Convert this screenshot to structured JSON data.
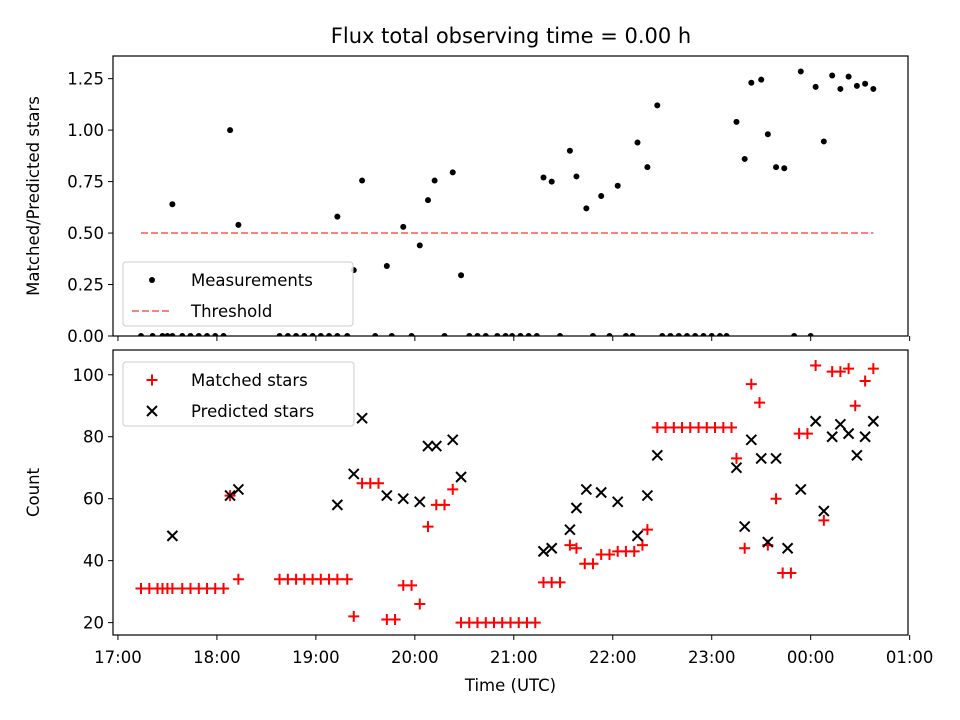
{
  "figure": {
    "title": "Flux total observing time = 0.00 h"
  },
  "chart_data": [
    {
      "type": "scatter",
      "title": "Flux total observing time = 0.00 h",
      "xlabel": "",
      "ylabel": "Matched/Predicted stars",
      "xlim": [
        -0.05,
        7.9833
      ],
      "ylim": [
        0,
        1.36
      ],
      "xtick_values": [
        0,
        1,
        2,
        3,
        4,
        5,
        6,
        7,
        8
      ],
      "xtick_labels": [
        "17:00",
        "18:00",
        "19:00",
        "20:00",
        "21:00",
        "22:00",
        "23:00",
        "00:00",
        "01:00"
      ],
      "ytick_values": [
        0,
        0.25,
        0.5,
        0.75,
        1.0,
        1.25
      ],
      "ytick_labels": [
        "0.00",
        "0.25",
        "0.50",
        "0.75",
        "1.00",
        "1.25"
      ],
      "grid": false,
      "legend": "lower-left",
      "series": [
        {
          "name": "Measurements",
          "color": "#000000",
          "marker": "dot",
          "points": [
            [
              0.233,
              0
            ],
            [
              0.35,
              0
            ],
            [
              0.45,
              0
            ],
            [
              0.5,
              0
            ],
            [
              0.55,
              0
            ],
            [
              0.65,
              0
            ],
            [
              0.733,
              0
            ],
            [
              0.817,
              0
            ],
            [
              0.9,
              0
            ],
            [
              0.983,
              0
            ],
            [
              1.067,
              0
            ],
            [
              0.55,
              0.64
            ],
            [
              1.133,
              1.0
            ],
            [
              1.217,
              0.54
            ],
            [
              1.633,
              0
            ],
            [
              1.717,
              0
            ],
            [
              1.8,
              0
            ],
            [
              1.883,
              0
            ],
            [
              1.967,
              0
            ],
            [
              2.05,
              0
            ],
            [
              2.133,
              0
            ],
            [
              2.217,
              0
            ],
            [
              2.317,
              0
            ],
            [
              2.217,
              0.58
            ],
            [
              2.383,
              0.32
            ],
            [
              2.467,
              0.755
            ],
            [
              2.6,
              0
            ],
            [
              2.767,
              0
            ],
            [
              2.967,
              0
            ],
            [
              2.717,
              0.34
            ],
            [
              2.883,
              0.53
            ],
            [
              3.05,
              0.44
            ],
            [
              3.133,
              0.66
            ],
            [
              3.2,
              0.755
            ],
            [
              3.383,
              0.795
            ],
            [
              3.467,
              0.295
            ],
            [
              3.3,
              0
            ],
            [
              3.55,
              0
            ],
            [
              3.633,
              0
            ],
            [
              3.717,
              0
            ],
            [
              3.833,
              0
            ],
            [
              3.917,
              0
            ],
            [
              3.983,
              0
            ],
            [
              4.067,
              0
            ],
            [
              4.15,
              0
            ],
            [
              4.233,
              0
            ],
            [
              4.467,
              0
            ],
            [
              4.3,
              0.77
            ],
            [
              4.383,
              0.75
            ],
            [
              4.567,
              0.9
            ],
            [
              4.633,
              0.775
            ],
            [
              4.733,
              0.62
            ],
            [
              4.883,
              0.68
            ],
            [
              5.05,
              0.73
            ],
            [
              5.25,
              0.94
            ],
            [
              5.35,
              0.82
            ],
            [
              5.45,
              1.12
            ],
            [
              4.8,
              0
            ],
            [
              4.967,
              0
            ],
            [
              5.133,
              0
            ],
            [
              5.2,
              0
            ],
            [
              5.5,
              0
            ],
            [
              5.583,
              0
            ],
            [
              5.667,
              0
            ],
            [
              5.75,
              0
            ],
            [
              5.833,
              0
            ],
            [
              5.917,
              0
            ],
            [
              6.0,
              0
            ],
            [
              6.083,
              0
            ],
            [
              6.15,
              0
            ],
            [
              6.25,
              1.04
            ],
            [
              6.333,
              0.86
            ],
            [
              6.4,
              1.23
            ],
            [
              6.5,
              1.245
            ],
            [
              6.567,
              0.98
            ],
            [
              6.65,
              0.82
            ],
            [
              6.733,
              0.815
            ],
            [
              6.833,
              0
            ],
            [
              7.0,
              0
            ],
            [
              6.9,
              1.285
            ],
            [
              7.05,
              1.21
            ],
            [
              7.133,
              0.945
            ],
            [
              7.217,
              1.265
            ],
            [
              7.3,
              1.2
            ],
            [
              7.383,
              1.26
            ],
            [
              7.467,
              1.215
            ],
            [
              7.55,
              1.225
            ],
            [
              7.633,
              1.2
            ]
          ]
        },
        {
          "name": "Threshold",
          "color": "#ff7f7f",
          "style": "dashed",
          "points": [
            [
              0.233,
              0.5
            ],
            [
              7.633,
              0.5
            ]
          ]
        }
      ]
    },
    {
      "type": "scatter",
      "title": "",
      "xlabel": "Time (UTC)",
      "ylabel": "Count",
      "xlim": [
        -0.05,
        7.9833
      ],
      "ylim": [
        16,
        108
      ],
      "xtick_values": [
        0,
        1,
        2,
        3,
        4,
        5,
        6,
        7,
        8
      ],
      "xtick_labels": [
        "17:00",
        "18:00",
        "19:00",
        "20:00",
        "21:00",
        "22:00",
        "23:00",
        "00:00",
        "01:00"
      ],
      "ytick_values": [
        20,
        40,
        60,
        80,
        100
      ],
      "ytick_labels": [
        "20",
        "40",
        "60",
        "80",
        "100"
      ],
      "grid": false,
      "legend": "top-left",
      "series": [
        {
          "name": "Matched stars",
          "color": "#ff0000",
          "marker": "plus",
          "points": [
            [
              0.233,
              31
            ],
            [
              0.317,
              31
            ],
            [
              0.4,
              31
            ],
            [
              0.45,
              31
            ],
            [
              0.5,
              31
            ],
            [
              0.55,
              31
            ],
            [
              0.65,
              31
            ],
            [
              0.733,
              31
            ],
            [
              0.817,
              31
            ],
            [
              0.9,
              31
            ],
            [
              0.983,
              31
            ],
            [
              1.067,
              31
            ],
            [
              1.133,
              61
            ],
            [
              1.217,
              34
            ],
            [
              1.633,
              34
            ],
            [
              1.717,
              34
            ],
            [
              1.8,
              34
            ],
            [
              1.883,
              34
            ],
            [
              1.967,
              34
            ],
            [
              2.05,
              34
            ],
            [
              2.133,
              34
            ],
            [
              2.217,
              34
            ],
            [
              2.317,
              34
            ],
            [
              2.383,
              22
            ],
            [
              2.467,
              65
            ],
            [
              2.55,
              65
            ],
            [
              2.633,
              65
            ],
            [
              2.717,
              21
            ],
            [
              2.8,
              21
            ],
            [
              2.883,
              32
            ],
            [
              2.967,
              32
            ],
            [
              3.05,
              26
            ],
            [
              3.133,
              51
            ],
            [
              3.217,
              58
            ],
            [
              3.3,
              58
            ],
            [
              3.383,
              63
            ],
            [
              3.467,
              20
            ],
            [
              3.55,
              20
            ],
            [
              3.633,
              20
            ],
            [
              3.717,
              20
            ],
            [
              3.8,
              20
            ],
            [
              3.883,
              20
            ],
            [
              3.967,
              20
            ],
            [
              4.05,
              20
            ],
            [
              4.133,
              20
            ],
            [
              4.217,
              20
            ],
            [
              4.3,
              33
            ],
            [
              4.383,
              33
            ],
            [
              4.467,
              33
            ],
            [
              4.567,
              45
            ],
            [
              4.633,
              44
            ],
            [
              4.717,
              39
            ],
            [
              4.8,
              39
            ],
            [
              4.883,
              42
            ],
            [
              4.967,
              42
            ],
            [
              5.05,
              43
            ],
            [
              5.133,
              43
            ],
            [
              5.217,
              43
            ],
            [
              5.3,
              45
            ],
            [
              5.35,
              50
            ],
            [
              5.45,
              83
            ],
            [
              5.533,
              83
            ],
            [
              5.617,
              83
            ],
            [
              5.7,
              83
            ],
            [
              5.783,
              83
            ],
            [
              5.867,
              83
            ],
            [
              5.95,
              83
            ],
            [
              6.033,
              83
            ],
            [
              6.117,
              83
            ],
            [
              6.2,
              83
            ],
            [
              6.25,
              73
            ],
            [
              6.333,
              44
            ],
            [
              6.4,
              97
            ],
            [
              6.483,
              91
            ],
            [
              6.567,
              45
            ],
            [
              6.65,
              60
            ],
            [
              6.717,
              36
            ],
            [
              6.8,
              36
            ],
            [
              6.883,
              81
            ],
            [
              6.967,
              81
            ],
            [
              7.05,
              103
            ],
            [
              7.133,
              53
            ],
            [
              7.217,
              101
            ],
            [
              7.3,
              101
            ],
            [
              7.383,
              102
            ],
            [
              7.45,
              90
            ],
            [
              7.55,
              98
            ],
            [
              7.633,
              102
            ]
          ]
        },
        {
          "name": "Predicted stars",
          "color": "#000000",
          "marker": "x",
          "points": [
            [
              0.55,
              48
            ],
            [
              1.133,
              61
            ],
            [
              1.217,
              63
            ],
            [
              2.217,
              58
            ],
            [
              2.383,
              68
            ],
            [
              2.467,
              86
            ],
            [
              2.717,
              61
            ],
            [
              2.883,
              60
            ],
            [
              3.05,
              59
            ],
            [
              3.133,
              77
            ],
            [
              3.217,
              77
            ],
            [
              3.383,
              79
            ],
            [
              3.467,
              67
            ],
            [
              4.3,
              43
            ],
            [
              4.383,
              44
            ],
            [
              4.567,
              50
            ],
            [
              4.633,
              57
            ],
            [
              4.733,
              63
            ],
            [
              4.883,
              62
            ],
            [
              5.05,
              59
            ],
            [
              5.25,
              48
            ],
            [
              5.35,
              61
            ],
            [
              5.45,
              74
            ],
            [
              6.25,
              70
            ],
            [
              6.333,
              51
            ],
            [
              6.4,
              79
            ],
            [
              6.5,
              73
            ],
            [
              6.567,
              46
            ],
            [
              6.65,
              73
            ],
            [
              6.767,
              44
            ],
            [
              6.9,
              63
            ],
            [
              7.05,
              85
            ],
            [
              7.133,
              56
            ],
            [
              7.217,
              80
            ],
            [
              7.3,
              84
            ],
            [
              7.383,
              81
            ],
            [
              7.467,
              74
            ],
            [
              7.55,
              80
            ],
            [
              7.633,
              85
            ]
          ]
        }
      ]
    }
  ]
}
